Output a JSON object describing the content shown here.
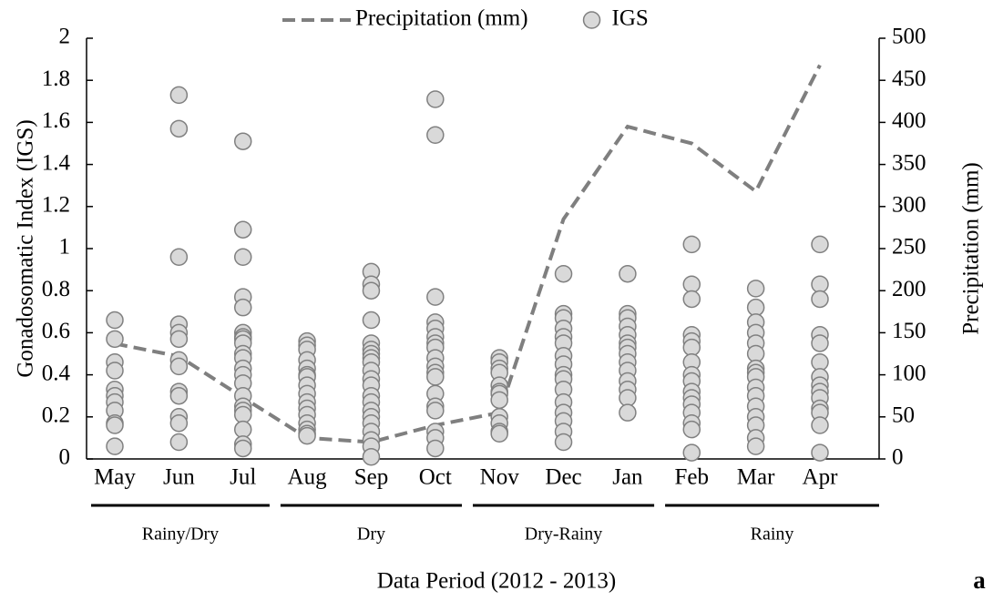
{
  "chart_data": {
    "type": "combo",
    "y_label": "Gonadosomatic Index (IGS)",
    "y2_label": "Precipitation (mm)",
    "x_label": "Data Period (2012 - 2013)",
    "annotation": "a",
    "categories": [
      "May",
      "Jun",
      "Jul",
      "Aug",
      "Sep",
      "Oct",
      "Nov",
      "Dec",
      "Jan",
      "Feb",
      "Mar",
      "Apr"
    ],
    "seasons": [
      "Rainy/Dry",
      "Dry",
      "Dry-Rainy",
      "Rainy"
    ],
    "ylim": [
      0,
      2
    ],
    "yticks": [
      0,
      0.2,
      0.4,
      0.6,
      0.8,
      1,
      1.2,
      1.4,
      1.6,
      1.8,
      2
    ],
    "y2lim": [
      0,
      500
    ],
    "y2ticks": [
      0,
      50,
      100,
      150,
      200,
      250,
      300,
      350,
      400,
      450,
      500
    ],
    "legend": "top",
    "series": [
      {
        "name": "Precipitation (mm)",
        "type": "line",
        "axis": "y2",
        "color": "#7f7f7f",
        "dashed": true,
        "values": [
          137,
          122,
          73,
          25,
          20,
          40,
          55,
          285,
          395,
          375,
          318,
          468
        ]
      },
      {
        "name": "IGS",
        "type": "scatter",
        "color": "#d9d9d9",
        "values": [
          [
            0.66,
            0.57,
            0.46,
            0.42,
            0.33,
            0.3,
            0.27,
            0.23,
            0.17,
            0.16,
            0.06
          ],
          [
            1.73,
            1.57,
            0.96,
            0.64,
            0.6,
            0.57,
            0.47,
            0.44,
            0.32,
            0.3,
            0.2,
            0.17,
            0.08
          ],
          [
            1.51,
            1.09,
            0.96,
            0.77,
            0.72,
            0.6,
            0.58,
            0.57,
            0.55,
            0.5,
            0.48,
            0.43,
            0.4,
            0.36,
            0.3,
            0.25,
            0.23,
            0.21,
            0.14,
            0.07,
            0.05
          ],
          [
            0.56,
            0.54,
            0.52,
            0.47,
            0.43,
            0.4,
            0.39,
            0.35,
            0.31,
            0.27,
            0.24,
            0.21,
            0.17,
            0.14,
            0.12,
            0.11
          ],
          [
            0.89,
            0.83,
            0.8,
            0.66,
            0.55,
            0.52,
            0.5,
            0.48,
            0.46,
            0.42,
            0.38,
            0.35,
            0.3,
            0.27,
            0.23,
            0.2,
            0.17,
            0.13,
            0.09,
            0.06,
            0.01
          ],
          [
            1.71,
            1.54,
            0.77,
            0.65,
            0.62,
            0.58,
            0.55,
            0.53,
            0.48,
            0.44,
            0.41,
            0.39,
            0.31,
            0.25,
            0.23,
            0.13,
            0.1,
            0.05
          ],
          [
            0.48,
            0.46,
            0.43,
            0.41,
            0.35,
            0.32,
            0.31,
            0.28,
            0.2,
            0.17,
            0.13,
            0.12
          ],
          [
            0.88,
            0.69,
            0.67,
            0.62,
            0.58,
            0.55,
            0.49,
            0.45,
            0.4,
            0.38,
            0.33,
            0.27,
            0.22,
            0.18,
            0.13,
            0.08
          ],
          [
            0.88,
            0.69,
            0.67,
            0.63,
            0.59,
            0.55,
            0.53,
            0.5,
            0.46,
            0.42,
            0.37,
            0.33,
            0.29,
            0.22
          ],
          [
            1.02,
            0.83,
            0.76,
            0.59,
            0.56,
            0.53,
            0.46,
            0.4,
            0.37,
            0.32,
            0.29,
            0.26,
            0.22,
            0.17,
            0.14,
            0.03
          ],
          [
            0.81,
            0.72,
            0.65,
            0.6,
            0.55,
            0.5,
            0.43,
            0.41,
            0.39,
            0.34,
            0.3,
            0.25,
            0.2,
            0.16,
            0.1,
            0.06
          ],
          [
            1.02,
            0.83,
            0.76,
            0.59,
            0.55,
            0.46,
            0.39,
            0.35,
            0.32,
            0.29,
            0.24,
            0.22,
            0.16,
            0.03
          ]
        ]
      }
    ]
  }
}
